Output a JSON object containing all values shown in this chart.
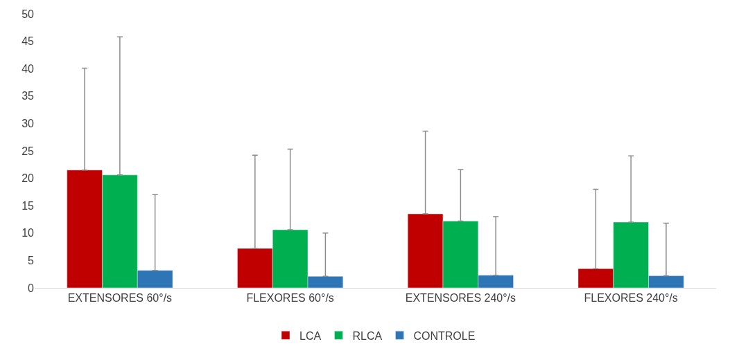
{
  "chart_data": {
    "type": "bar",
    "categories": [
      "EXTENSORES 60°/s",
      "FLEXORES 60°/s",
      "EXTENSORES 240°/s",
      "FLEXORES 240°/s"
    ],
    "series": [
      {
        "name": "LCA",
        "color": "#c00000",
        "values": [
          21.5,
          7.2,
          13.5,
          3.5
        ],
        "errors": [
          [
            21.5,
            40.1
          ],
          [
            7.2,
            24.2
          ],
          [
            13.5,
            28.6
          ],
          [
            3.5,
            18.0
          ]
        ]
      },
      {
        "name": "RLCA",
        "color": "#00b050",
        "values": [
          20.6,
          10.6,
          12.2,
          12.0
        ],
        "errors": [
          [
            20.6,
            45.8
          ],
          [
            10.6,
            25.3
          ],
          [
            12.2,
            21.6
          ],
          [
            12.0,
            24.1
          ]
        ]
      },
      {
        "name": "CONTROLE",
        "color": "#2e75b6",
        "values": [
          3.2,
          2.1,
          2.3,
          2.2
        ],
        "errors": [
          [
            3.2,
            17.0
          ],
          [
            2.1,
            10.0
          ],
          [
            2.3,
            13.0
          ],
          [
            2.2,
            11.8
          ]
        ]
      }
    ],
    "ylim": [
      0,
      50
    ],
    "yticks": [
      0,
      5,
      10,
      15,
      20,
      25,
      30,
      35,
      40,
      45,
      50
    ],
    "grid": false,
    "legend": "bottom"
  }
}
